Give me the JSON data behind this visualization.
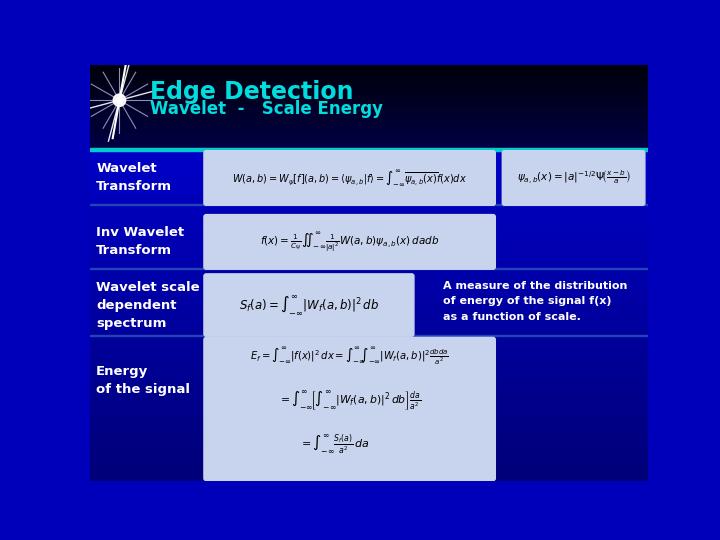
{
  "title": "Edge Detection",
  "subtitle": "Wavelet  -   Scale Energy",
  "title_color": "#00dddd",
  "subtitle_color": "#00dddd",
  "label_color": "#ffffff",
  "formula_bg": "#c8d4ee",
  "note_color": "#ffffff",
  "labels": [
    "Wavelet\nTransform",
    "Inv Wavelet\nTransform",
    "Wavelet scale\ndependent\nspectrum",
    "Energy\nof the signal"
  ],
  "note": "A measure of the distribution\nof energy of the signal f(x)\nas a function of scale."
}
